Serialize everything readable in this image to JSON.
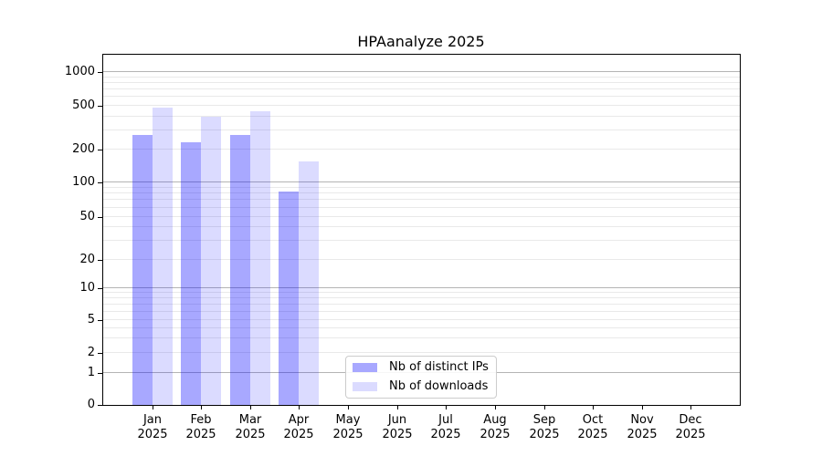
{
  "chart_data": {
    "type": "bar",
    "title": "HPAanalyze 2025",
    "xlabel": "",
    "ylabel": "",
    "year": "2025",
    "categories": [
      "Jan",
      "Feb",
      "Mar",
      "Apr",
      "May",
      "Jun",
      "Jul",
      "Aug",
      "Sep",
      "Oct",
      "Nov",
      "Dec"
    ],
    "series": [
      {
        "name": "Nb of distinct IPs",
        "color": "rgba(0,0,255,0.34)",
        "values": [
          270,
          235,
          270,
          83,
          null,
          null,
          null,
          null,
          null,
          null,
          null,
          null
        ]
      },
      {
        "name": "Nb of downloads",
        "color": "rgba(0,0,255,0.14)",
        "values": [
          480,
          395,
          445,
          155,
          null,
          null,
          null,
          null,
          null,
          null,
          null,
          null
        ]
      }
    ],
    "yscale": "symlog",
    "ylim": [
      0,
      1450
    ],
    "y_tick_values": [
      0,
      1,
      2,
      5,
      10,
      20,
      50,
      100,
      200,
      500,
      1000
    ],
    "y_major_values": [
      1,
      10,
      100,
      1000
    ],
    "y_minor_unlabeled": [
      3,
      4,
      6,
      7,
      8,
      9,
      30,
      40,
      60,
      70,
      80,
      90,
      300,
      400,
      600,
      700,
      800,
      900
    ],
    "grid": true,
    "legend_position": "lower center"
  },
  "colors": {
    "major_grid": "#b4b4b4",
    "minor_grid": "#e9e9e9",
    "spine": "#000000",
    "text": "#000000",
    "legend_border": "#cccccc",
    "background": "#ffffff"
  }
}
